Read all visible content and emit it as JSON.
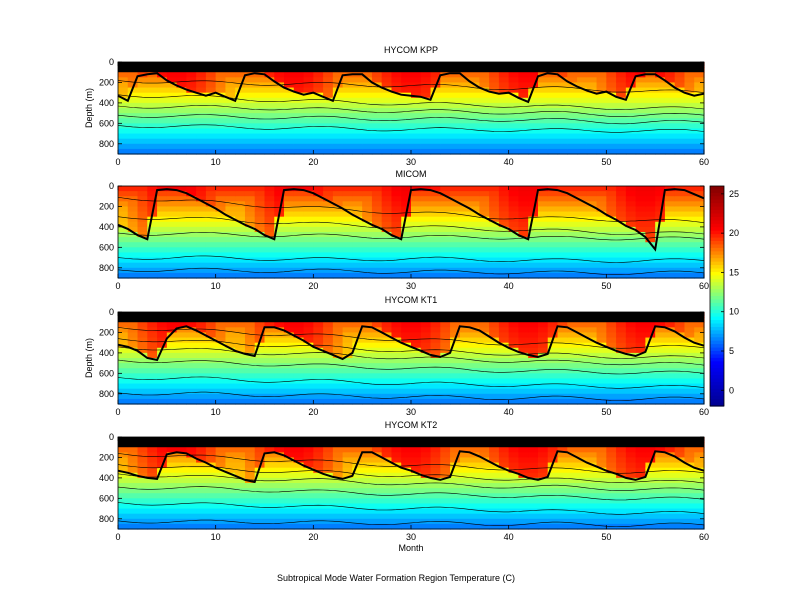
{
  "chart_data": [
    {
      "type": "heatmap",
      "title": "HYCOM KPP",
      "xlabel": "",
      "ylabel": "Depth (m)",
      "xlim": [
        0,
        60
      ],
      "ylim": [
        900,
        0
      ],
      "x_ticks": [
        0,
        10,
        20,
        30,
        40,
        50,
        60
      ],
      "y_ticks": [
        0,
        200,
        400,
        600,
        800
      ],
      "surface_black_band": true,
      "mixed_layer_depth_m": [
        330,
        380,
        140,
        120,
        110,
        180,
        230,
        270,
        300,
        330,
        300,
        340,
        380,
        130,
        110,
        120,
        190,
        250,
        290,
        320,
        300,
        340,
        380,
        130,
        120,
        120,
        200,
        250,
        290,
        320,
        330,
        340,
        370,
        130,
        110,
        110,
        190,
        250,
        290,
        310,
        300,
        350,
        390,
        140,
        110,
        120,
        190,
        240,
        280,
        310,
        290,
        340,
        370,
        140,
        120,
        120,
        180,
        250,
        300,
        330,
        310
      ],
      "isotherm_depths_m": [
        [
          180,
          200,
          210,
          220,
          230,
          250,
          260,
          280,
          300
        ],
        [
          320,
          340,
          370,
          390,
          410,
          420,
          440,
          450,
          460
        ],
        [
          430,
          440,
          450,
          470,
          480,
          490,
          500,
          520,
          520
        ],
        [
          520,
          530,
          540,
          550,
          560,
          560,
          570,
          590,
          590
        ],
        [
          620,
          630,
          640,
          650,
          660,
          660,
          670,
          670,
          680
        ]
      ]
    },
    {
      "type": "heatmap",
      "title": "MICOM",
      "xlabel": "",
      "ylabel": "",
      "xlim": [
        0,
        60
      ],
      "ylim": [
        900,
        0
      ],
      "x_ticks": [
        0,
        10,
        20,
        30,
        40,
        50,
        60
      ],
      "y_ticks": [
        0,
        200,
        400,
        600,
        800
      ],
      "surface_black_band": false,
      "mixed_layer_depth_m": [
        380,
        420,
        480,
        520,
        40,
        30,
        40,
        70,
        120,
        170,
        220,
        280,
        330,
        380,
        420,
        480,
        520,
        40,
        30,
        40,
        70,
        120,
        170,
        220,
        280,
        330,
        380,
        420,
        480,
        520,
        40,
        30,
        40,
        70,
        120,
        170,
        220,
        280,
        330,
        380,
        420,
        480,
        520,
        40,
        30,
        40,
        70,
        120,
        170,
        220,
        280,
        330,
        390,
        430,
        500,
        620,
        40,
        30,
        40,
        80,
        120
      ],
      "isotherm_depths_m": [
        [
          110,
          150,
          190,
          230,
          260,
          300,
          320,
          330,
          360
        ],
        [
          300,
          320,
          350,
          380,
          400,
          420,
          440,
          460,
          470
        ],
        [
          460,
          470,
          480,
          490,
          500,
          500,
          510,
          510,
          520
        ],
        [
          700,
          700,
          710,
          720,
          710,
          720,
          730,
          730,
          730
        ],
        [
          820,
          820,
          830,
          830,
          840,
          840,
          850,
          850,
          850
        ]
      ]
    },
    {
      "type": "heatmap",
      "title": "HYCOM KT1",
      "xlabel": "",
      "ylabel": "Depth (m)",
      "xlim": [
        0,
        60
      ],
      "ylim": [
        900,
        0
      ],
      "x_ticks": [
        0,
        10,
        20,
        30,
        40,
        50,
        60
      ],
      "y_ticks": [
        0,
        200,
        400,
        600,
        800
      ],
      "surface_black_band": true,
      "mixed_layer_depth_m": [
        320,
        340,
        380,
        450,
        470,
        260,
        160,
        140,
        180,
        230,
        280,
        330,
        380,
        410,
        430,
        150,
        150,
        180,
        230,
        280,
        340,
        380,
        420,
        460,
        400,
        140,
        150,
        200,
        250,
        300,
        340,
        380,
        420,
        440,
        400,
        140,
        150,
        180,
        240,
        300,
        350,
        390,
        420,
        440,
        410,
        140,
        150,
        200,
        250,
        300,
        340,
        380,
        410,
        430,
        390,
        140,
        150,
        190,
        250,
        300,
        330
      ],
      "isotherm_depths_m": [
        [
          150,
          180,
          210,
          240,
          270,
          300,
          320,
          340,
          350
        ],
        [
          260,
          290,
          320,
          350,
          380,
          400,
          420,
          440,
          450
        ],
        [
          340,
          370,
          400,
          420,
          450,
          470,
          490,
          500,
          520
        ],
        [
          470,
          490,
          510,
          530,
          550,
          570,
          580,
          590,
          600
        ],
        [
          640,
          650,
          670,
          680,
          700,
          710,
          720,
          730,
          740
        ],
        [
          790,
          800,
          810,
          820,
          830,
          840,
          840,
          850,
          850
        ]
      ]
    },
    {
      "type": "heatmap",
      "title": "HYCOM KT2",
      "xlabel": "Month",
      "ylabel": "",
      "xlim": [
        0,
        60
      ],
      "ylim": [
        900,
        0
      ],
      "x_ticks": [
        0,
        10,
        20,
        30,
        40,
        50,
        60
      ],
      "y_ticks": [
        0,
        200,
        400,
        600,
        800
      ],
      "surface_black_band": true,
      "mixed_layer_depth_m": [
        330,
        350,
        380,
        400,
        410,
        170,
        150,
        160,
        210,
        250,
        300,
        340,
        380,
        420,
        440,
        160,
        150,
        180,
        230,
        280,
        320,
        360,
        390,
        410,
        380,
        150,
        150,
        200,
        250,
        300,
        330,
        370,
        400,
        420,
        390,
        140,
        150,
        190,
        240,
        290,
        330,
        360,
        400,
        420,
        390,
        140,
        150,
        200,
        250,
        290,
        330,
        360,
        400,
        420,
        390,
        140,
        150,
        190,
        250,
        300,
        330
      ],
      "isotherm_depths_m": [
        [
          160,
          190,
          220,
          250,
          280,
          300,
          320,
          340,
          350
        ],
        [
          270,
          300,
          330,
          350,
          380,
          400,
          420,
          430,
          450
        ],
        [
          360,
          390,
          410,
          430,
          460,
          480,
          490,
          510,
          520
        ],
        [
          490,
          500,
          520,
          540,
          560,
          570,
          590,
          600,
          610
        ],
        [
          640,
          660,
          670,
          690,
          700,
          710,
          730,
          740,
          750
        ],
        [
          820,
          830,
          830,
          840,
          840,
          850,
          850,
          860,
          860
        ]
      ]
    }
  ],
  "colorbar": {
    "range": [
      -2,
      26
    ],
    "ticks": [
      0,
      5,
      10,
      15,
      20,
      25
    ],
    "colormap": [
      "#00008f",
      "#0000ff",
      "#00ffff",
      "#ffff00",
      "#ff0000",
      "#800000"
    ]
  },
  "figure_caption": "Subtropical Mode Water Formation Region Temperature (C)"
}
